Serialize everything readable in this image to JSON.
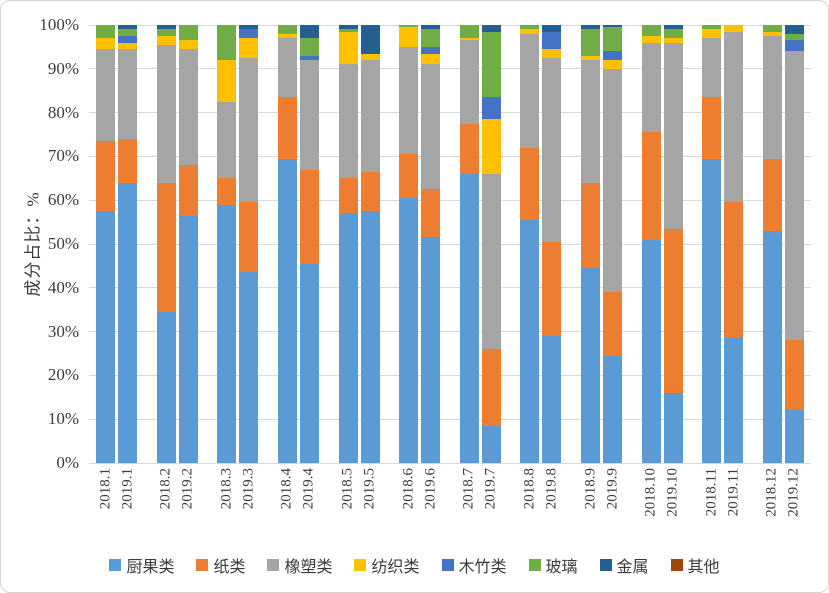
{
  "frame": {
    "background": "#ffffff",
    "border_color": "#d5d5d5",
    "gridline_color": "#d9d9d9",
    "text_color": "#3b3b3b"
  },
  "chart_data": {
    "type": "bar",
    "variant": "stacked-100pct",
    "title": "",
    "xlabel": "",
    "ylabel": "成分占比：%",
    "ylim": [
      0,
      100
    ],
    "grid": true,
    "legend_position": "bottom",
    "ytick_labels": [
      "0%",
      "10%",
      "20%",
      "30%",
      "40%",
      "50%",
      "60%",
      "70%",
      "80%",
      "90%",
      "100%"
    ],
    "categories": [
      "2018.1",
      "2019.1",
      "2018.2",
      "2019.2",
      "2018.3",
      "2019.3",
      "2018.4",
      "2019.4",
      "2018.5",
      "2019.5",
      "2018.6",
      "2019.6",
      "2018.7",
      "2019.7",
      "2018.8",
      "2019.8",
      "2018.9",
      "2019.9",
      "2018.10",
      "2019.10",
      "2018.11",
      "2019.11",
      "2018.12",
      "2019.12"
    ],
    "series": [
      {
        "name": "厨果类",
        "color": "#5B9BD5",
        "values": [
          57.5,
          64,
          34.5,
          56.5,
          59,
          43.5,
          69.5,
          45.5,
          57,
          57.5,
          60.5,
          51.5,
          66,
          8.5,
          55.5,
          29,
          44.5,
          24.5,
          51,
          16,
          69.5,
          28.5,
          53,
          12
        ]
      },
      {
        "name": "纸类",
        "color": "#ED7D31",
        "values": [
          16,
          10,
          29.5,
          11.5,
          6,
          16,
          14,
          21.5,
          8,
          9,
          10,
          11,
          11.5,
          17.5,
          16.5,
          21.5,
          19.5,
          14.5,
          24.5,
          37.5,
          14,
          31,
          16.5,
          16
        ]
      },
      {
        "name": "橡塑类",
        "color": "#A5A5A5",
        "values": [
          21,
          20.5,
          31.5,
          26.5,
          17.5,
          33,
          13.5,
          25,
          26,
          25.5,
          24.5,
          28.5,
          19,
          40,
          26,
          42,
          28,
          51,
          20.5,
          42.5,
          13.5,
          39,
          28,
          66
        ]
      },
      {
        "name": "纺织类",
        "color": "#FFC000",
        "values": [
          2.5,
          1.5,
          2,
          2,
          9.5,
          4.5,
          1,
          0,
          7.5,
          1.5,
          4.5,
          2.5,
          0.5,
          12.5,
          1,
          2,
          1,
          2,
          1.5,
          1,
          2,
          1.5,
          1,
          0
        ]
      },
      {
        "name": "木竹类",
        "color": "#4472C4",
        "values": [
          0,
          1.5,
          0,
          0,
          0,
          2,
          0,
          1,
          0,
          0,
          0,
          1.5,
          0,
          5,
          0,
          4,
          0,
          2,
          0,
          0,
          0,
          0,
          0,
          2.5
        ]
      },
      {
        "name": "玻璃",
        "color": "#70AD47",
        "values": [
          3,
          1.5,
          1.5,
          3.5,
          8,
          0,
          2,
          4,
          0.5,
          0,
          0.5,
          4,
          3,
          15,
          1,
          0,
          6,
          5.5,
          2.5,
          2,
          1,
          0,
          1.5,
          1.5
        ]
      },
      {
        "name": "金属",
        "color": "#255E91",
        "values": [
          0,
          1,
          1,
          0,
          0,
          1,
          0,
          3,
          1,
          6.5,
          0,
          1,
          0,
          1.5,
          0,
          1.5,
          1,
          0.5,
          0,
          1,
          0,
          0,
          0,
          2
        ]
      },
      {
        "name": "其他",
        "color": "#9E480E",
        "values": [
          0,
          0,
          0,
          0,
          0,
          0,
          0,
          0,
          0,
          0,
          0,
          0,
          0,
          0,
          0,
          0,
          0,
          0,
          0,
          0,
          0,
          0,
          0,
          0
        ]
      }
    ]
  }
}
